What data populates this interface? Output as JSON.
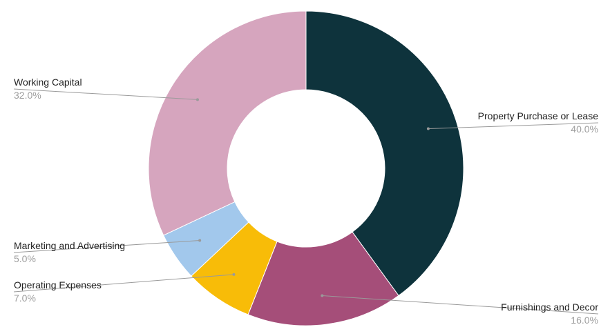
{
  "chart_data": {
    "type": "pie",
    "donut": true,
    "title": "",
    "slices": [
      {
        "label": "Property Purchase or Lease",
        "value": 40.0,
        "display": "40.0%",
        "color": "#0e333c"
      },
      {
        "label": "Furnishings and Decor",
        "value": 16.0,
        "display": "16.0%",
        "color": "#a54e79"
      },
      {
        "label": "Operating Expenses",
        "value": 7.0,
        "display": "7.0%",
        "color": "#f8bc08"
      },
      {
        "label": "Marketing and Advertising",
        "value": 5.0,
        "display": "5.0%",
        "color": "#a2c8ec"
      },
      {
        "label": "Working Capital",
        "value": 32.0,
        "display": "32.0%",
        "color": "#d6a5be"
      }
    ],
    "start_angle": "12 o'clock",
    "direction": "clockwise",
    "legend": "none",
    "labels": "outside with leader lines"
  }
}
